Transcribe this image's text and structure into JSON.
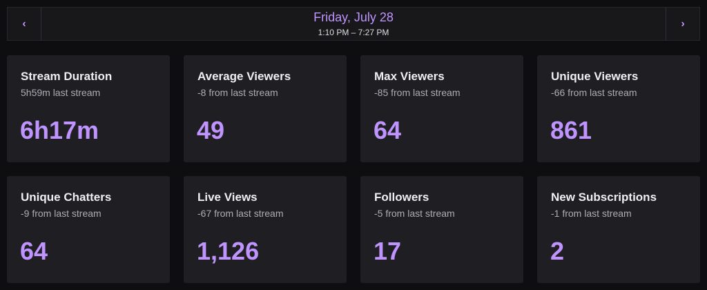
{
  "header": {
    "date": "Friday, July 28",
    "time_range": "1:10 PM – 7:27 PM"
  },
  "cards": [
    {
      "title": "Stream Duration",
      "comparison": "5h59m last stream",
      "value": "6h17m"
    },
    {
      "title": "Average Viewers",
      "comparison": "-8 from last stream",
      "value": "49"
    },
    {
      "title": "Max Viewers",
      "comparison": "-85 from last stream",
      "value": "64"
    },
    {
      "title": "Unique Viewers",
      "comparison": "-66 from last stream",
      "value": "861"
    },
    {
      "title": "Unique Chatters",
      "comparison": "-9 from last stream",
      "value": "64"
    },
    {
      "title": "Live Views",
      "comparison": "-67 from last stream",
      "value": "1,126"
    },
    {
      "title": "Followers",
      "comparison": "-5 from last stream",
      "value": "17"
    },
    {
      "title": "New Subscriptions",
      "comparison": "-1 from last stream",
      "value": "2"
    }
  ]
}
